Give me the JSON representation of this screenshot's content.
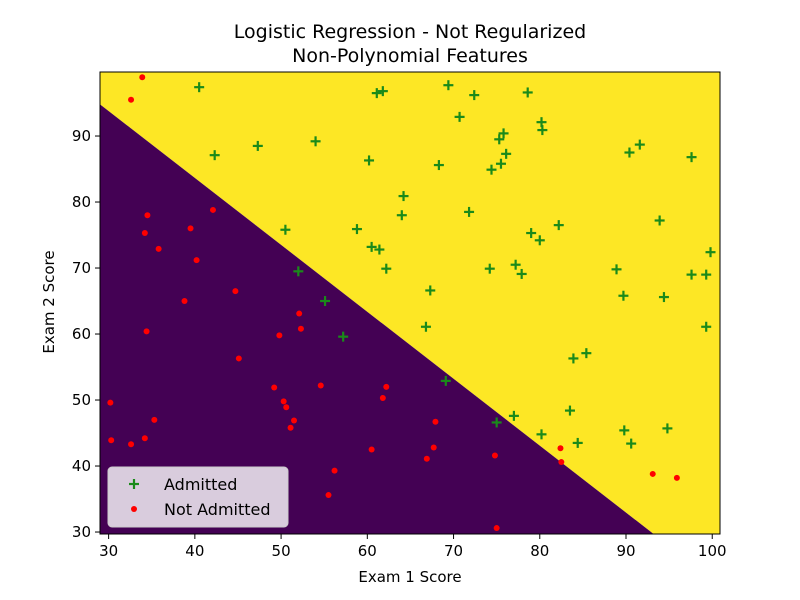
{
  "chart_data": {
    "type": "scatter",
    "title": [
      "Logistic Regression - Not Regularized",
      "Non-Polynomial Features"
    ],
    "xlabel": "Exam 1 Score",
    "ylabel": "Exam 2 Score",
    "xlim": [
      29,
      100.9
    ],
    "ylim": [
      29.7,
      99.7
    ],
    "xticks": [
      30,
      40,
      50,
      60,
      70,
      80,
      90,
      100
    ],
    "yticks": [
      30,
      40,
      50,
      60,
      70,
      80,
      90
    ],
    "grid": false,
    "legend_position": "bottom-left",
    "decision_boundary": {
      "from": [
        29,
        94.8
      ],
      "to": [
        93.2,
        29.7
      ]
    },
    "regions": [
      {
        "label": "predicted not admitted",
        "color": "#440154"
      },
      {
        "label": "predicted admitted",
        "color": "#fde725"
      }
    ],
    "series": [
      {
        "name": "Admitted",
        "marker": "+",
        "color": "#1a8a1a",
        "points": [
          [
            40.5,
            97.4
          ],
          [
            61.1,
            96.5
          ],
          [
            61.8,
            96.8
          ],
          [
            69.4,
            97.7
          ],
          [
            72.4,
            96.2
          ],
          [
            78.6,
            96.6
          ],
          [
            70.7,
            92.9
          ],
          [
            80.2,
            92.1
          ],
          [
            80.3,
            90.9
          ],
          [
            75.3,
            89.5
          ],
          [
            75.8,
            90.4
          ],
          [
            91.6,
            88.7
          ],
          [
            42.3,
            87.1
          ],
          [
            47.3,
            88.5
          ],
          [
            54.0,
            89.2
          ],
          [
            60.2,
            86.3
          ],
          [
            68.3,
            85.6
          ],
          [
            74.4,
            84.9
          ],
          [
            75.5,
            85.8
          ],
          [
            76.1,
            87.3
          ],
          [
            90.4,
            87.5
          ],
          [
            97.6,
            86.8
          ],
          [
            64.2,
            80.9
          ],
          [
            64.0,
            78.0
          ],
          [
            71.8,
            78.5
          ],
          [
            93.9,
            77.2
          ],
          [
            50.5,
            75.8
          ],
          [
            58.8,
            75.9
          ],
          [
            79.0,
            75.3
          ],
          [
            80.0,
            74.2
          ],
          [
            82.2,
            76.5
          ],
          [
            60.5,
            73.2
          ],
          [
            61.4,
            72.8
          ],
          [
            62.2,
            69.9
          ],
          [
            74.2,
            69.9
          ],
          [
            77.2,
            70.5
          ],
          [
            77.9,
            69.1
          ],
          [
            88.9,
            69.8
          ],
          [
            97.6,
            69.0
          ],
          [
            99.3,
            69.0
          ],
          [
            99.8,
            72.4
          ],
          [
            52.0,
            69.5
          ],
          [
            67.3,
            66.6
          ],
          [
            89.7,
            65.8
          ],
          [
            94.4,
            65.6
          ],
          [
            55.1,
            65.0
          ],
          [
            57.2,
            59.6
          ],
          [
            66.8,
            61.1
          ],
          [
            99.3,
            61.1
          ],
          [
            83.9,
            56.3
          ],
          [
            85.4,
            57.1
          ],
          [
            69.1,
            52.9
          ],
          [
            83.5,
            48.4
          ],
          [
            77.0,
            47.6
          ],
          [
            75.0,
            46.6
          ],
          [
            80.2,
            44.8
          ],
          [
            89.8,
            45.4
          ],
          [
            90.6,
            43.4
          ],
          [
            84.4,
            43.5
          ],
          [
            94.8,
            45.7
          ]
        ]
      },
      {
        "name": "Not Admitted",
        "marker": "o",
        "color": "#ff0000",
        "points": [
          [
            33.9,
            98.9
          ],
          [
            32.6,
            95.5
          ],
          [
            34.5,
            78.0
          ],
          [
            34.2,
            75.3
          ],
          [
            35.8,
            72.9
          ],
          [
            42.1,
            78.8
          ],
          [
            39.5,
            76.0
          ],
          [
            40.2,
            71.2
          ],
          [
            44.7,
            66.5
          ],
          [
            38.8,
            65.0
          ],
          [
            34.4,
            60.4
          ],
          [
            49.8,
            59.8
          ],
          [
            52.1,
            63.1
          ],
          [
            52.3,
            60.8
          ],
          [
            45.1,
            56.3
          ],
          [
            30.2,
            49.6
          ],
          [
            49.2,
            51.9
          ],
          [
            50.3,
            49.8
          ],
          [
            50.6,
            48.9
          ],
          [
            54.6,
            52.2
          ],
          [
            62.2,
            52.0
          ],
          [
            61.8,
            50.3
          ],
          [
            67.9,
            46.7
          ],
          [
            51.5,
            46.9
          ],
          [
            51.1,
            45.8
          ],
          [
            30.3,
            43.9
          ],
          [
            32.6,
            43.3
          ],
          [
            34.2,
            44.2
          ],
          [
            35.3,
            47.0
          ],
          [
            60.5,
            42.5
          ],
          [
            67.7,
            42.8
          ],
          [
            66.9,
            41.1
          ],
          [
            74.8,
            41.6
          ],
          [
            82.4,
            42.7
          ],
          [
            82.5,
            40.6
          ],
          [
            56.2,
            39.3
          ],
          [
            55.5,
            35.6
          ],
          [
            93.1,
            38.8
          ],
          [
            95.9,
            38.2
          ],
          [
            75.0,
            30.6
          ]
        ]
      }
    ]
  }
}
